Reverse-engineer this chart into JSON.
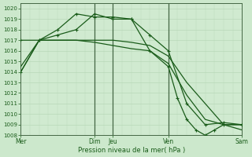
{
  "background_color": "#cce8cc",
  "plot_bg_color": "#d0ead0",
  "grid_color": "#aaccaa",
  "line_color": "#1a5c1a",
  "xlabel": "Pression niveau de la mer( hPa )",
  "ylim": [
    1008,
    1020.5
  ],
  "yticks": [
    1008,
    1009,
    1010,
    1011,
    1012,
    1013,
    1014,
    1015,
    1016,
    1017,
    1018,
    1019,
    1020
  ],
  "xlim": [
    0,
    288
  ],
  "xtick_positions": [
    0,
    96,
    120,
    192,
    288
  ],
  "xtick_labels": [
    "Mer",
    "Dim",
    "Jeu",
    "Ven",
    "Sam"
  ],
  "vlines": [
    96,
    120,
    192
  ],
  "series": [
    {
      "x": [
        0,
        24,
        48,
        72,
        96,
        120,
        144,
        168,
        192,
        204,
        216,
        228,
        240,
        252,
        264,
        288
      ],
      "y": [
        1014.0,
        1017.0,
        1017.5,
        1018.0,
        1019.5,
        1019.0,
        1019.0,
        1016.0,
        1014.5,
        1011.5,
        1009.5,
        1008.5,
        1008.0,
        1008.5,
        1009.0,
        1009.0
      ],
      "marker": true,
      "linewidth": 0.9
    },
    {
      "x": [
        0,
        24,
        48,
        72,
        96,
        120,
        144,
        168,
        192,
        216,
        240,
        264,
        288
      ],
      "y": [
        1017.0,
        1017.0,
        1018.0,
        1019.5,
        1019.2,
        1019.2,
        1019.0,
        1017.5,
        1016.0,
        1011.0,
        1009.0,
        1009.2,
        1009.0
      ],
      "marker": true,
      "linewidth": 0.9
    },
    {
      "x": [
        0,
        24,
        48,
        72,
        96,
        120,
        144,
        168,
        192,
        216,
        240,
        264,
        288
      ],
      "y": [
        1014.5,
        1017.0,
        1017.0,
        1017.0,
        1017.0,
        1017.0,
        1016.8,
        1016.5,
        1015.5,
        1013.0,
        1011.0,
        1009.0,
        1008.5
      ],
      "marker": false,
      "linewidth": 0.9
    },
    {
      "x": [
        0,
        24,
        48,
        72,
        96,
        120,
        144,
        168,
        192,
        216,
        240,
        264,
        288
      ],
      "y": [
        1014.0,
        1017.0,
        1017.0,
        1017.0,
        1016.8,
        1016.5,
        1016.2,
        1016.0,
        1014.8,
        1011.8,
        1009.5,
        1009.0,
        1009.0
      ],
      "marker": false,
      "linewidth": 0.9
    }
  ]
}
